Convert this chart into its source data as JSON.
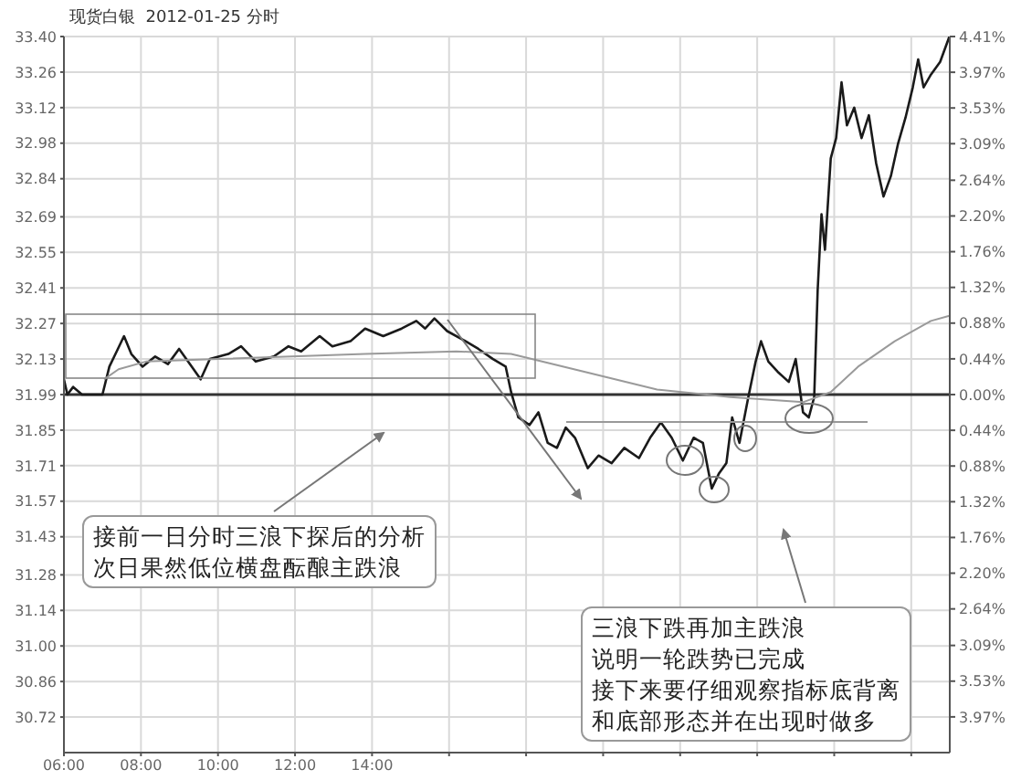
{
  "chart_data": {
    "type": "line",
    "title": "现货白银  2012-01-25 分时",
    "xlim": [
      6,
      29
    ],
    "xticks": [
      {
        "value": 6,
        "label": "06:00"
      },
      {
        "value": 8,
        "label": "08:00"
      },
      {
        "value": 10,
        "label": "10:00"
      },
      {
        "value": 12,
        "label": "12:00"
      },
      {
        "value": 14,
        "label": "14:00"
      },
      {
        "value": 16,
        "label": null
      },
      {
        "value": 18,
        "label": null
      },
      {
        "value": 20,
        "label": null
      },
      {
        "value": 22,
        "label": null
      },
      {
        "value": 24,
        "label": null
      },
      {
        "value": 26,
        "label": null
      },
      {
        "value": 28,
        "label": null
      }
    ],
    "ylim": [
      30.58,
      33.4
    ],
    "yticks": [
      {
        "value": 33.4,
        "label": "33.40"
      },
      33.26,
      33.12,
      32.98,
      32.84,
      32.69,
      32.55,
      32.41,
      32.27,
      32.13,
      31.99,
      31.85,
      31.71,
      31.57,
      31.43,
      31.28,
      31.14,
      {
        "value": 31.0,
        "label": "31.00"
      },
      30.86,
      30.72
    ],
    "y2lim": [
      -4.41,
      4.41
    ],
    "y2ticks": [
      {
        "value": 4.41,
        "label": "4.41%"
      },
      {
        "value": 3.97,
        "label": "3.97%"
      },
      {
        "value": 3.53,
        "label": "3.53%"
      },
      {
        "value": 3.09,
        "label": "3.09%"
      },
      {
        "value": 2.64,
        "label": "2.64%"
      },
      {
        "value": 2.2,
        "label": "2.20%"
      },
      {
        "value": 1.76,
        "label": "1.76%"
      },
      {
        "value": 1.32,
        "label": "1.32%"
      },
      {
        "value": 0.88,
        "label": "0.88%"
      },
      {
        "value": 0.44,
        "label": "0.44%"
      },
      {
        "value": 0,
        "label": "0.00%"
      },
      {
        "value": -0.44,
        "label": "0.44%"
      },
      {
        "value": -0.88,
        "label": "0.88%"
      },
      {
        "value": -1.32,
        "label": "1.32%"
      },
      {
        "value": -1.76,
        "label": "1.76%"
      },
      {
        "value": -2.2,
        "label": "2.20%"
      },
      {
        "value": -2.64,
        "label": "2.64%"
      },
      {
        "value": -3.09,
        "label": "3.09%"
      },
      {
        "value": -3.53,
        "label": "3.53%"
      },
      {
        "value": -3.97,
        "label": "3.97%"
      }
    ],
    "grid": true,
    "legend": false,
    "marker": "none",
    "line_style": "solid",
    "ref_lines": [
      {
        "axis": "y",
        "value": 31.99,
        "color": "#333333"
      }
    ],
    "series": [
      {
        "color": "#1a1a1a",
        "x": [
          6.0,
          6.09,
          6.24,
          6.47,
          7.0,
          7.18,
          7.37,
          7.56,
          7.75,
          8.04,
          8.37,
          8.7,
          8.99,
          9.32,
          9.55,
          9.79,
          10.27,
          10.6,
          10.98,
          11.45,
          11.83,
          12.16,
          12.64,
          12.97,
          13.44,
          13.82,
          14.29,
          14.77,
          15.15,
          15.38,
          15.62,
          15.95,
          16.43,
          16.76,
          17.14,
          17.47,
          17.61,
          17.8,
          18.09,
          18.32,
          18.56,
          18.8,
          19.03,
          19.27,
          19.6,
          19.88,
          20.22,
          20.55,
          20.93,
          21.22,
          21.5,
          21.78,
          22.07,
          22.35,
          22.59,
          22.82,
          23.01,
          23.2,
          23.35,
          23.54,
          23.77,
          23.96,
          24.1,
          24.29,
          24.53,
          24.82,
          25.0,
          25.19,
          25.34,
          25.48,
          25.57,
          25.67,
          25.76,
          25.91,
          26.05,
          26.19,
          26.33,
          26.52,
          26.71,
          26.9,
          27.09,
          27.28,
          27.47,
          27.66,
          27.85,
          28.04,
          28.18,
          28.32,
          28.51,
          28.75,
          28.99
        ],
        "values": [
          32.05,
          31.99,
          32.02,
          31.99,
          31.99,
          32.1,
          32.16,
          32.22,
          32.15,
          32.1,
          32.14,
          32.11,
          32.17,
          32.1,
          32.05,
          32.13,
          32.15,
          32.18,
          32.12,
          32.14,
          32.18,
          32.16,
          32.22,
          32.18,
          32.2,
          32.25,
          32.22,
          32.25,
          32.28,
          32.25,
          32.29,
          32.24,
          32.2,
          32.17,
          32.13,
          32.1,
          32.0,
          31.9,
          31.87,
          31.92,
          31.8,
          31.78,
          31.86,
          31.82,
          31.7,
          31.75,
          31.72,
          31.78,
          31.74,
          31.82,
          31.88,
          31.82,
          31.73,
          31.82,
          31.8,
          31.62,
          31.68,
          31.72,
          31.9,
          31.8,
          31.98,
          32.12,
          32.2,
          32.12,
          32.08,
          32.04,
          32.13,
          31.92,
          31.9,
          31.98,
          32.4,
          32.7,
          32.56,
          32.92,
          33.0,
          33.22,
          33.05,
          33.12,
          33.0,
          33.09,
          32.9,
          32.77,
          32.85,
          32.98,
          33.08,
          33.2,
          33.31,
          33.2,
          33.25,
          33.3,
          33.4
        ]
      },
      {
        "color": "#9a9a9a",
        "x": [
          7.04,
          7.42,
          8.13,
          10.03,
          13.82,
          16.19,
          17.61,
          19.51,
          21.4,
          23.3,
          25.19,
          25.91,
          26.62,
          27.57,
          28.51,
          28.99
        ],
        "values": [
          32.05,
          32.09,
          32.12,
          32.13,
          32.15,
          32.16,
          32.15,
          32.08,
          32.01,
          31.98,
          31.96,
          32.0,
          32.1,
          32.2,
          32.28,
          32.3
        ]
      }
    ],
    "annotations": [
      "接前一日分时三浪下探后的分析",
      "次日果然低位横盘酝酿主跌浪",
      "三浪下跌再加主跌浪",
      "说明一轮跌势已完成",
      "接下来要仔细观察指标底背离",
      "和底部形态并在出现时做多"
    ]
  }
}
